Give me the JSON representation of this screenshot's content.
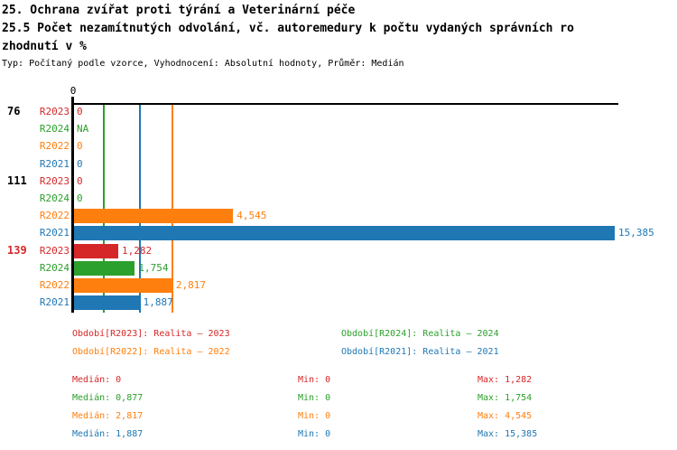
{
  "chart_data": {
    "type": "bar",
    "orientation": "horizontal",
    "title_lines": [
      "25. Ochrana zvířat proti týrání a Veterinární péče",
      "25.5 Počet nezamítnutých odvolání, vč. autoremedury k počtu vydaných správních ro",
      "zhodnutí v %"
    ],
    "subtitle": "Typ: Počítaný podle vzorce, Vyhodnocení: Absolutní hodnoty, Průměr: Medián",
    "axis_zero_label": "0",
    "xlim": [
      0,
      15.49
    ],
    "grid": false,
    "series": [
      {
        "id": "R2023",
        "name": "Realita – 2023",
        "color": "#d62728",
        "median": 0
      },
      {
        "id": "R2024",
        "name": "Realita – 2024",
        "color": "#2ca02c",
        "median": 0.877
      },
      {
        "id": "R2022",
        "name": "Realita – 2022",
        "color": "#ff7f0e",
        "median": 2.817
      },
      {
        "id": "R2021",
        "name": "Realita – 2021",
        "color": "#1f77b4",
        "median": 1.887
      }
    ],
    "groups": [
      {
        "label": "76",
        "label_color": "#000000",
        "rows": [
          {
            "series": "R2023",
            "value": 0,
            "display": "0"
          },
          {
            "series": "R2024",
            "value": null,
            "display": "NA"
          },
          {
            "series": "R2022",
            "value": 0,
            "display": "0"
          },
          {
            "series": "R2021",
            "value": 0,
            "display": "0"
          }
        ]
      },
      {
        "label": "111",
        "label_color": "#000000",
        "rows": [
          {
            "series": "R2023",
            "value": 0,
            "display": "0"
          },
          {
            "series": "R2024",
            "value": 0,
            "display": "0"
          },
          {
            "series": "R2022",
            "value": 4.545,
            "display": "4,545"
          },
          {
            "series": "R2021",
            "value": 15.385,
            "display": "15,385"
          }
        ]
      },
      {
        "label": "139",
        "label_color": "#d62728",
        "rows": [
          {
            "series": "R2023",
            "value": 1.282,
            "display": "1,282"
          },
          {
            "series": "R2024",
            "value": 1.754,
            "display": "1,754"
          },
          {
            "series": "R2022",
            "value": 2.817,
            "display": "2,817"
          },
          {
            "series": "R2021",
            "value": 1.887,
            "display": "1,887"
          }
        ]
      }
    ],
    "legend": {
      "col1": [
        "Období[R2023]: Realita – 2023",
        "Období[R2022]: Realita – 2022"
      ],
      "col2": [
        "Období[R2024]: Realita – 2024",
        "Období[R2021]: Realita – 2021"
      ]
    },
    "legend_colors": {
      "col1": [
        "#d62728",
        "#ff7f0e"
      ],
      "col2": [
        "#2ca02c",
        "#1f77b4"
      ]
    },
    "stats": [
      {
        "color": "#d62728",
        "median": "Medián: 0",
        "min": "Min: 0",
        "max": "Max: 1,282"
      },
      {
        "color": "#2ca02c",
        "median": "Medián: 0,877",
        "min": "Min: 0",
        "max": "Max: 1,754"
      },
      {
        "color": "#ff7f0e",
        "median": "Medián: 2,817",
        "min": "Min: 0",
        "max": "Max: 4,545"
      },
      {
        "color": "#1f77b4",
        "median": "Medián: 1,887",
        "min": "Min: 0",
        "max": "Max: 15,385"
      }
    ]
  }
}
